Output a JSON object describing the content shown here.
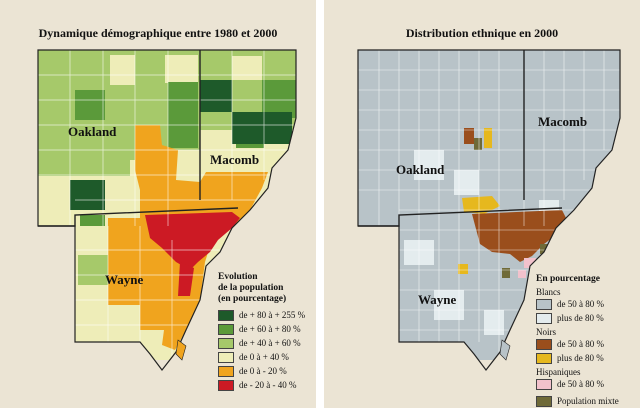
{
  "left": {
    "title": "Dynamique démographique entre 1980 et 2000",
    "counties": {
      "oakland": "Oakland",
      "macomb": "Macomb",
      "wayne": "Wayne"
    },
    "legend": {
      "heading": [
        "Evolution",
        "de la population",
        "(en pourcentage)"
      ],
      "items": [
        {
          "label": "de + 80 à + 255 %",
          "color": "#1e5a2a"
        },
        {
          "label": "de + 60 à + 80 %",
          "color": "#5b9a3a"
        },
        {
          "label": "de + 40 à + 60 %",
          "color": "#a6c96a"
        },
        {
          "label": "de 0 à + 40 %",
          "color": "#eeedb8"
        },
        {
          "label": "de 0 à - 20 %",
          "color": "#f0a41e"
        },
        {
          "label": "de - 20  à - 40 %",
          "color": "#cc1a24"
        }
      ]
    }
  },
  "right": {
    "title": "Distribution ethnique en 2000",
    "counties": {
      "oakland": "Oakland",
      "macomb": "Macomb",
      "wayne": "Wayne"
    },
    "legend": {
      "heading": "En pourcentage",
      "groups": [
        {
          "name": "Blancs",
          "items": [
            {
              "label": "de 50 à 80 %",
              "color": "#b8c3c8"
            },
            {
              "label": "plus de 80 %",
              "color": "#e4ecee"
            }
          ]
        },
        {
          "name": "Noirs",
          "items": [
            {
              "label": "de 50 à 80 %",
              "color": "#9a4e1c"
            },
            {
              "label": "plus de 80 %",
              "color": "#e6b81e"
            }
          ]
        },
        {
          "name": "Hispaniques",
          "items": [
            {
              "label": "de 50 à 80 %",
              "color": "#f2c2cc"
            }
          ]
        }
      ],
      "mixed": {
        "label": "Population mixte",
        "color": "#6f6a38"
      }
    }
  },
  "colors": {
    "water": "#ebe4d4",
    "border": "#222222"
  }
}
